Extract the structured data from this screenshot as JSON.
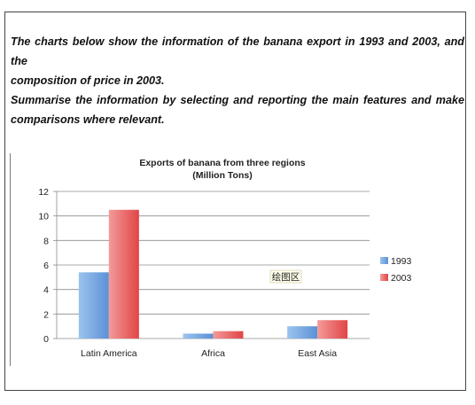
{
  "task": {
    "paragraph1_line1": "The charts below show the information of the banana export in 1993 and 2003, and the",
    "paragraph1_line2": "composition of price in 2003.",
    "paragraph2_line1": "Summarise the information by selecting and reporting the main features and make",
    "paragraph2_line2": "comparisons where relevant."
  },
  "plot_area_label": "绘图区",
  "chart_data": {
    "type": "bar",
    "title": "Exports of banana from three regions",
    "subtitle": "(Million Tons)",
    "xlabel": "",
    "ylabel": "",
    "categories": [
      "Latin America",
      "Africa",
      "East Asia"
    ],
    "series": [
      {
        "name": "1993",
        "values": [
          5.4,
          0.4,
          1.0
        ],
        "color": "#6fa3df"
      },
      {
        "name": "2003",
        "values": [
          10.5,
          0.6,
          1.5
        ],
        "color": "#e9595a"
      }
    ],
    "ylim": [
      0,
      12
    ],
    "yticks": [
      0,
      2,
      4,
      6,
      8,
      10,
      12
    ],
    "grid": true,
    "legend": "right"
  }
}
